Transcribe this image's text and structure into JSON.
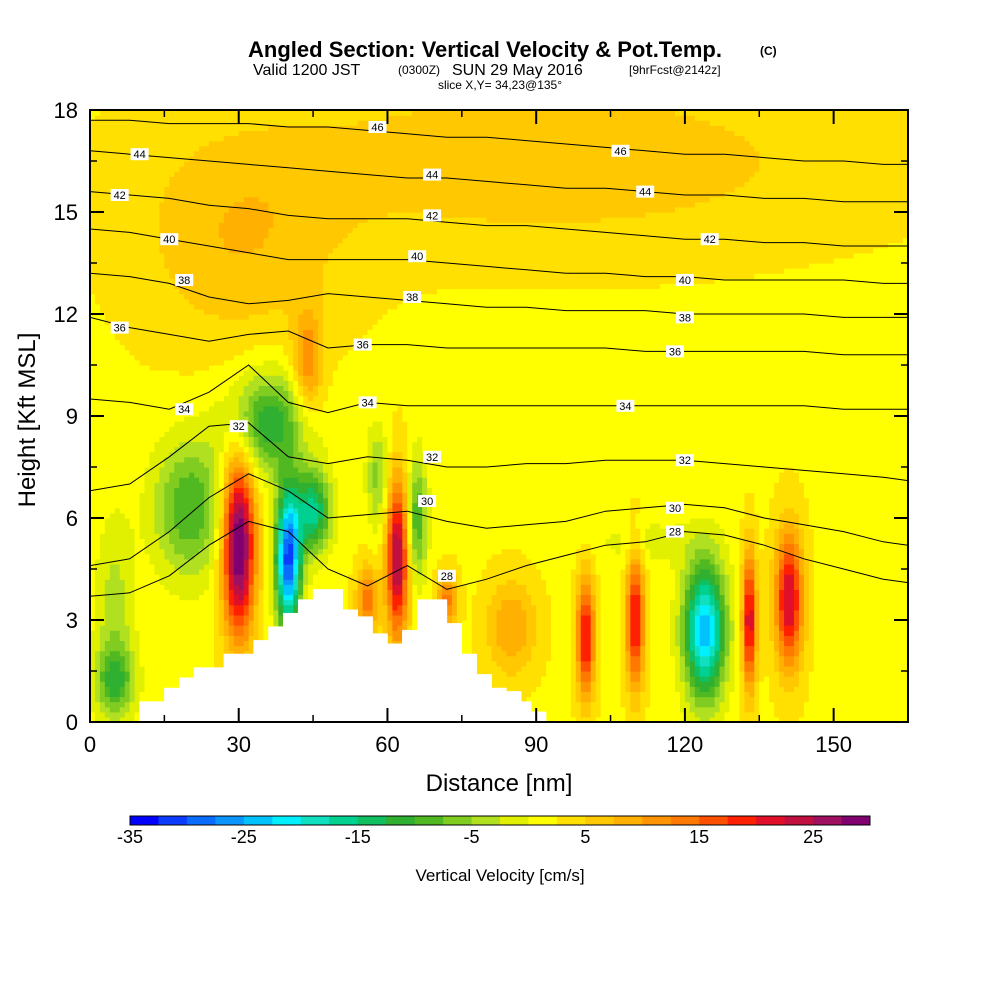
{
  "header": {
    "title": "Angled Section: Vertical Velocity & Pot.Temp.",
    "title_mark": "(C)",
    "valid_prefix": "Valid 1200 JST",
    "valid_z": "(0300Z)",
    "valid_date": "SUN 29 May 2016",
    "valid_fcst": "[9hrFcst@2142z]",
    "slice": "slice X,Y= 34,23@135°"
  },
  "chart_data": {
    "type": "heatmap",
    "title": "Angled Section: Vertical Velocity & Pot.Temp.",
    "xlabel": "Distance [nm]",
    "ylabel": "Height [Kft MSL]",
    "xlim": [
      0,
      165
    ],
    "ylim": [
      0,
      18
    ],
    "x_ticks": [
      "0",
      "30",
      "60",
      "90",
      "120",
      "150"
    ],
    "y_ticks": [
      "0",
      "3",
      "6",
      "9",
      "12",
      "15",
      "18"
    ],
    "x_tick_values": [
      0,
      30,
      60,
      90,
      120,
      150
    ],
    "y_tick_values": [
      0,
      3,
      6,
      9,
      12,
      15,
      18
    ],
    "background_velocity": 2,
    "velocity_cells": [
      {
        "x": 30,
        "y": 5.2,
        "sx": 3.2,
        "sy": 2.6,
        "v": 30
      },
      {
        "x": 36,
        "y": 8.8,
        "sx": 8,
        "sy": 1.5,
        "v": -14
      },
      {
        "x": 20,
        "y": 6.3,
        "sx": 7,
        "sy": 2.0,
        "v": -12
      },
      {
        "x": 40,
        "y": 4.8,
        "sx": 2.5,
        "sy": 2.0,
        "v": -33
      },
      {
        "x": 45,
        "y": 6.2,
        "sx": 3.5,
        "sy": 1.2,
        "v": -18
      },
      {
        "x": 44,
        "y": 10.5,
        "sx": 3,
        "sy": 1.6,
        "v": 10
      },
      {
        "x": 56,
        "y": 3.6,
        "sx": 2.2,
        "sy": 1.0,
        "v": 12
      },
      {
        "x": 62,
        "y": 4.8,
        "sx": 2.2,
        "sy": 2.3,
        "v": 24
      },
      {
        "x": 66,
        "y": 6.0,
        "sx": 2.0,
        "sy": 1.8,
        "v": -12
      },
      {
        "x": 58,
        "y": 7.2,
        "sx": 2.2,
        "sy": 1.5,
        "v": -8
      },
      {
        "x": 72,
        "y": 3.6,
        "sx": 2.0,
        "sy": 0.8,
        "v": 12
      },
      {
        "x": 85,
        "y": 2.8,
        "sx": 5,
        "sy": 1.4,
        "v": 8
      },
      {
        "x": 100,
        "y": 2.5,
        "sx": 1.8,
        "sy": 1.8,
        "v": 19
      },
      {
        "x": 110,
        "y": 3.0,
        "sx": 1.8,
        "sy": 2.0,
        "v": 19
      },
      {
        "x": 124,
        "y": 2.7,
        "sx": 4.2,
        "sy": 2.0,
        "v": -26
      },
      {
        "x": 133,
        "y": 3.0,
        "sx": 1.4,
        "sy": 2.0,
        "v": 21
      },
      {
        "x": 141,
        "y": 3.6,
        "sx": 2.8,
        "sy": 2.0,
        "v": 21
      },
      {
        "x": 112,
        "y": 5.3,
        "sx": 12,
        "sy": 0.8,
        "v": -3
      },
      {
        "x": 5,
        "y": 3.0,
        "sx": 4,
        "sy": 3.0,
        "v": -6
      },
      {
        "x": 92,
        "y": 16.5,
        "sx": 60,
        "sy": 2.5,
        "v": 5
      },
      {
        "x": 30,
        "y": 14,
        "sx": 20,
        "sy": 3,
        "v": 5
      },
      {
        "x": 5,
        "y": 1.2,
        "sx": 4,
        "sy": 1.0,
        "v": -10
      }
    ],
    "terrain": [
      [
        10,
        0.6
      ],
      [
        15,
        1.0
      ],
      [
        18,
        1.3
      ],
      [
        21,
        1.6
      ],
      [
        27,
        2.0
      ],
      [
        30,
        2.0
      ],
      [
        33,
        2.4
      ],
      [
        36,
        2.8
      ],
      [
        39,
        3.2
      ],
      [
        42,
        3.6
      ],
      [
        45,
        3.9
      ],
      [
        48,
        3.9
      ],
      [
        51,
        3.3
      ],
      [
        54,
        3.1
      ],
      [
        57,
        2.6
      ],
      [
        60,
        2.3
      ],
      [
        63,
        2.7
      ],
      [
        66,
        3.6
      ],
      [
        69,
        3.6
      ],
      [
        72,
        2.9
      ],
      [
        75,
        2.0
      ],
      [
        78,
        1.4
      ],
      [
        81,
        1.0
      ],
      [
        84,
        0.9
      ],
      [
        87,
        0.6
      ],
      [
        89,
        0.3
      ]
    ],
    "theta_levels": [
      {
        "label": "28",
        "x": [
          0,
          8,
          16,
          24,
          32,
          40,
          48,
          56,
          64,
          72,
          80,
          88,
          96,
          104,
          112,
          120,
          128,
          136,
          144,
          152,
          160,
          165
        ],
        "y": [
          3.7,
          3.8,
          4.3,
          5.2,
          5.9,
          5.6,
          4.5,
          4.0,
          4.6,
          3.9,
          4.2,
          4.6,
          4.9,
          5.2,
          5.3,
          5.6,
          5.5,
          5.2,
          4.8,
          4.5,
          4.2,
          4.1
        ]
      },
      {
        "label": "30",
        "x": [
          0,
          8,
          16,
          24,
          32,
          40,
          48,
          56,
          64,
          72,
          80,
          88,
          96,
          104,
          112,
          120,
          128,
          136,
          144,
          152,
          160,
          165
        ],
        "y": [
          4.6,
          4.8,
          5.6,
          6.6,
          7.3,
          6.8,
          6.0,
          6.1,
          6.2,
          5.9,
          5.7,
          5.8,
          5.9,
          6.2,
          6.3,
          6.4,
          6.3,
          6.0,
          5.8,
          5.6,
          5.3,
          5.2
        ]
      },
      {
        "label": "32",
        "x": [
          0,
          8,
          16,
          24,
          32,
          40,
          48,
          56,
          64,
          72,
          80,
          88,
          96,
          104,
          112,
          120,
          128,
          136,
          144,
          152,
          160,
          165
        ],
        "y": [
          6.8,
          7.0,
          7.8,
          8.7,
          8.8,
          7.8,
          7.6,
          7.8,
          7.7,
          7.5,
          7.5,
          7.6,
          7.6,
          7.7,
          7.7,
          7.7,
          7.6,
          7.5,
          7.4,
          7.3,
          7.2,
          7.1
        ]
      },
      {
        "label": "34",
        "x": [
          0,
          8,
          16,
          24,
          32,
          40,
          48,
          56,
          64,
          72,
          80,
          88,
          96,
          104,
          112,
          120,
          128,
          136,
          144,
          152,
          160,
          165
        ],
        "y": [
          9.5,
          9.4,
          9.2,
          9.7,
          10.5,
          9.4,
          9.1,
          9.4,
          9.3,
          9.3,
          9.3,
          9.3,
          9.3,
          9.3,
          9.3,
          9.3,
          9.3,
          9.3,
          9.3,
          9.2,
          9.2,
          9.2
        ]
      },
      {
        "label": "36",
        "x": [
          0,
          8,
          16,
          24,
          32,
          40,
          48,
          56,
          64,
          72,
          80,
          88,
          96,
          104,
          112,
          120,
          128,
          136,
          144,
          152,
          160,
          165
        ],
        "y": [
          11.9,
          11.6,
          11.4,
          11.2,
          11.4,
          11.5,
          11.0,
          11.1,
          11.1,
          11.0,
          11.0,
          11.0,
          11.0,
          11.0,
          10.9,
          10.9,
          10.9,
          10.9,
          10.9,
          10.8,
          10.8,
          10.8
        ]
      },
      {
        "label": "38",
        "x": [
          0,
          8,
          16,
          24,
          32,
          40,
          48,
          56,
          64,
          72,
          80,
          88,
          96,
          104,
          112,
          120,
          128,
          136,
          144,
          152,
          160,
          165
        ],
        "y": [
          13.2,
          13.1,
          12.9,
          12.5,
          12.3,
          12.4,
          12.6,
          12.5,
          12.4,
          12.3,
          12.2,
          12.2,
          12.1,
          12.1,
          12.1,
          12.0,
          12.0,
          12.0,
          12.0,
          11.9,
          11.9,
          11.9
        ]
      },
      {
        "label": "40",
        "x": [
          0,
          8,
          16,
          24,
          32,
          40,
          48,
          56,
          64,
          72,
          80,
          88,
          96,
          104,
          112,
          120,
          128,
          136,
          144,
          152,
          160,
          165
        ],
        "y": [
          14.5,
          14.4,
          14.2,
          14.0,
          13.8,
          13.6,
          13.6,
          13.6,
          13.6,
          13.5,
          13.4,
          13.3,
          13.2,
          13.2,
          13.1,
          13.1,
          13.0,
          13.0,
          13.0,
          13.0,
          12.9,
          12.9
        ]
      },
      {
        "label": "42",
        "x": [
          0,
          8,
          16,
          24,
          32,
          40,
          48,
          56,
          64,
          72,
          80,
          88,
          96,
          104,
          112,
          120,
          128,
          136,
          144,
          152,
          160,
          165
        ],
        "y": [
          15.6,
          15.5,
          15.4,
          15.2,
          15.1,
          14.9,
          14.8,
          14.8,
          14.8,
          14.7,
          14.6,
          14.6,
          14.5,
          14.4,
          14.3,
          14.2,
          14.2,
          14.1,
          14.1,
          14.0,
          14.0,
          14.0
        ]
      },
      {
        "label": "44",
        "x": [
          0,
          8,
          16,
          24,
          32,
          40,
          48,
          56,
          64,
          72,
          80,
          88,
          96,
          104,
          112,
          120,
          128,
          136,
          144,
          152,
          160,
          165
        ],
        "y": [
          16.8,
          16.7,
          16.6,
          16.5,
          16.4,
          16.3,
          16.2,
          16.1,
          16.0,
          16.0,
          15.9,
          15.8,
          15.7,
          15.7,
          15.6,
          15.5,
          15.5,
          15.4,
          15.4,
          15.3,
          15.3,
          15.3
        ]
      },
      {
        "label": "46",
        "x": [
          0,
          8,
          16,
          24,
          32,
          40,
          48,
          56,
          64,
          72,
          80,
          88,
          96,
          104,
          112,
          120,
          128,
          136,
          144,
          152,
          160,
          165
        ],
        "y": [
          17.7,
          17.7,
          17.6,
          17.6,
          17.6,
          17.5,
          17.5,
          17.4,
          17.3,
          17.2,
          17.2,
          17.1,
          17.0,
          16.9,
          16.8,
          16.7,
          16.7,
          16.6,
          16.5,
          16.5,
          16.4,
          16.4
        ]
      }
    ],
    "contour_labels": [
      {
        "text": "46",
        "x": 58,
        "y": 17.5
      },
      {
        "text": "46",
        "x": 107,
        "y": 16.8
      },
      {
        "text": "44",
        "x": 10,
        "y": 16.7
      },
      {
        "text": "44",
        "x": 69,
        "y": 16.1
      },
      {
        "text": "44",
        "x": 112,
        "y": 15.6
      },
      {
        "text": "42",
        "x": 6,
        "y": 15.5
      },
      {
        "text": "42",
        "x": 69,
        "y": 14.9
      },
      {
        "text": "42",
        "x": 125,
        "y": 14.2
      },
      {
        "text": "40",
        "x": 16,
        "y": 14.2
      },
      {
        "text": "40",
        "x": 66,
        "y": 13.7
      },
      {
        "text": "40",
        "x": 120,
        "y": 13.0
      },
      {
        "text": "38",
        "x": 19,
        "y": 13.0
      },
      {
        "text": "38",
        "x": 65,
        "y": 12.5
      },
      {
        "text": "38",
        "x": 120,
        "y": 11.9
      },
      {
        "text": "36",
        "x": 6,
        "y": 11.6
      },
      {
        "text": "36",
        "x": 55,
        "y": 11.1
      },
      {
        "text": "36",
        "x": 118,
        "y": 10.9
      },
      {
        "text": "34",
        "x": 19,
        "y": 9.2
      },
      {
        "text": "34",
        "x": 56,
        "y": 9.4
      },
      {
        "text": "34",
        "x": 108,
        "y": 9.3
      },
      {
        "text": "32",
        "x": 30,
        "y": 8.7
      },
      {
        "text": "32",
        "x": 69,
        "y": 7.8
      },
      {
        "text": "32",
        "x": 120,
        "y": 7.7
      },
      {
        "text": "30",
        "x": 68,
        "y": 6.5
      },
      {
        "text": "30",
        "x": 118,
        "y": 6.3
      },
      {
        "text": "28",
        "x": 72,
        "y": 4.3
      },
      {
        "text": "28",
        "x": 118,
        "y": 5.6
      }
    ]
  },
  "colorbar": {
    "label": "Vertical Velocity [cm/s]",
    "min": -35,
    "max": 30,
    "step": 2.5,
    "tick_labels": [
      "-35",
      "-25",
      "-15",
      "-5",
      "5",
      "15",
      "25"
    ],
    "tick_values": [
      -35,
      -25,
      -15,
      -5,
      5,
      15,
      25
    ],
    "colors": [
      "#0000ff",
      "#0a3cff",
      "#0a6bff",
      "#0a95ff",
      "#00c2ff",
      "#00f0ff",
      "#10e0c0",
      "#00d090",
      "#10c060",
      "#30b030",
      "#50b820",
      "#80cc20",
      "#b0e020",
      "#e0f000",
      "#ffff00",
      "#ffe000",
      "#ffc800",
      "#ffb000",
      "#ff9400",
      "#ff7800",
      "#ff5000",
      "#ff2000",
      "#e0102a",
      "#c01040",
      "#a01060",
      "#800070"
    ]
  }
}
